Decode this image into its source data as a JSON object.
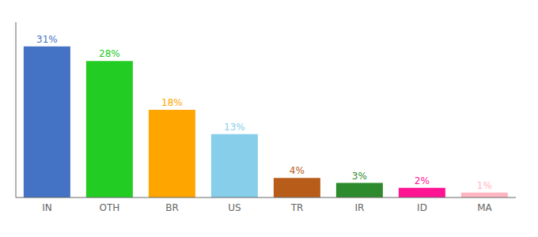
{
  "chart_data": {
    "type": "bar",
    "categories": [
      "IN",
      "OTH",
      "BR",
      "US",
      "TR",
      "IR",
      "ID",
      "MA"
    ],
    "values": [
      31,
      28,
      18,
      13,
      4,
      3,
      2,
      1
    ],
    "value_labels": [
      "31%",
      "28%",
      "18%",
      "13%",
      "4%",
      "3%",
      "2%",
      "1%"
    ],
    "data_labels": true,
    "colors": [
      "#4472C4",
      "#22CC22",
      "#FFA500",
      "#87CEEB",
      "#B85C1A",
      "#2D8B2D",
      "#FF1493",
      "#FFB6C1"
    ],
    "ylim": [
      0,
      36
    ],
    "tick_labels": "x",
    "grid": false
  }
}
